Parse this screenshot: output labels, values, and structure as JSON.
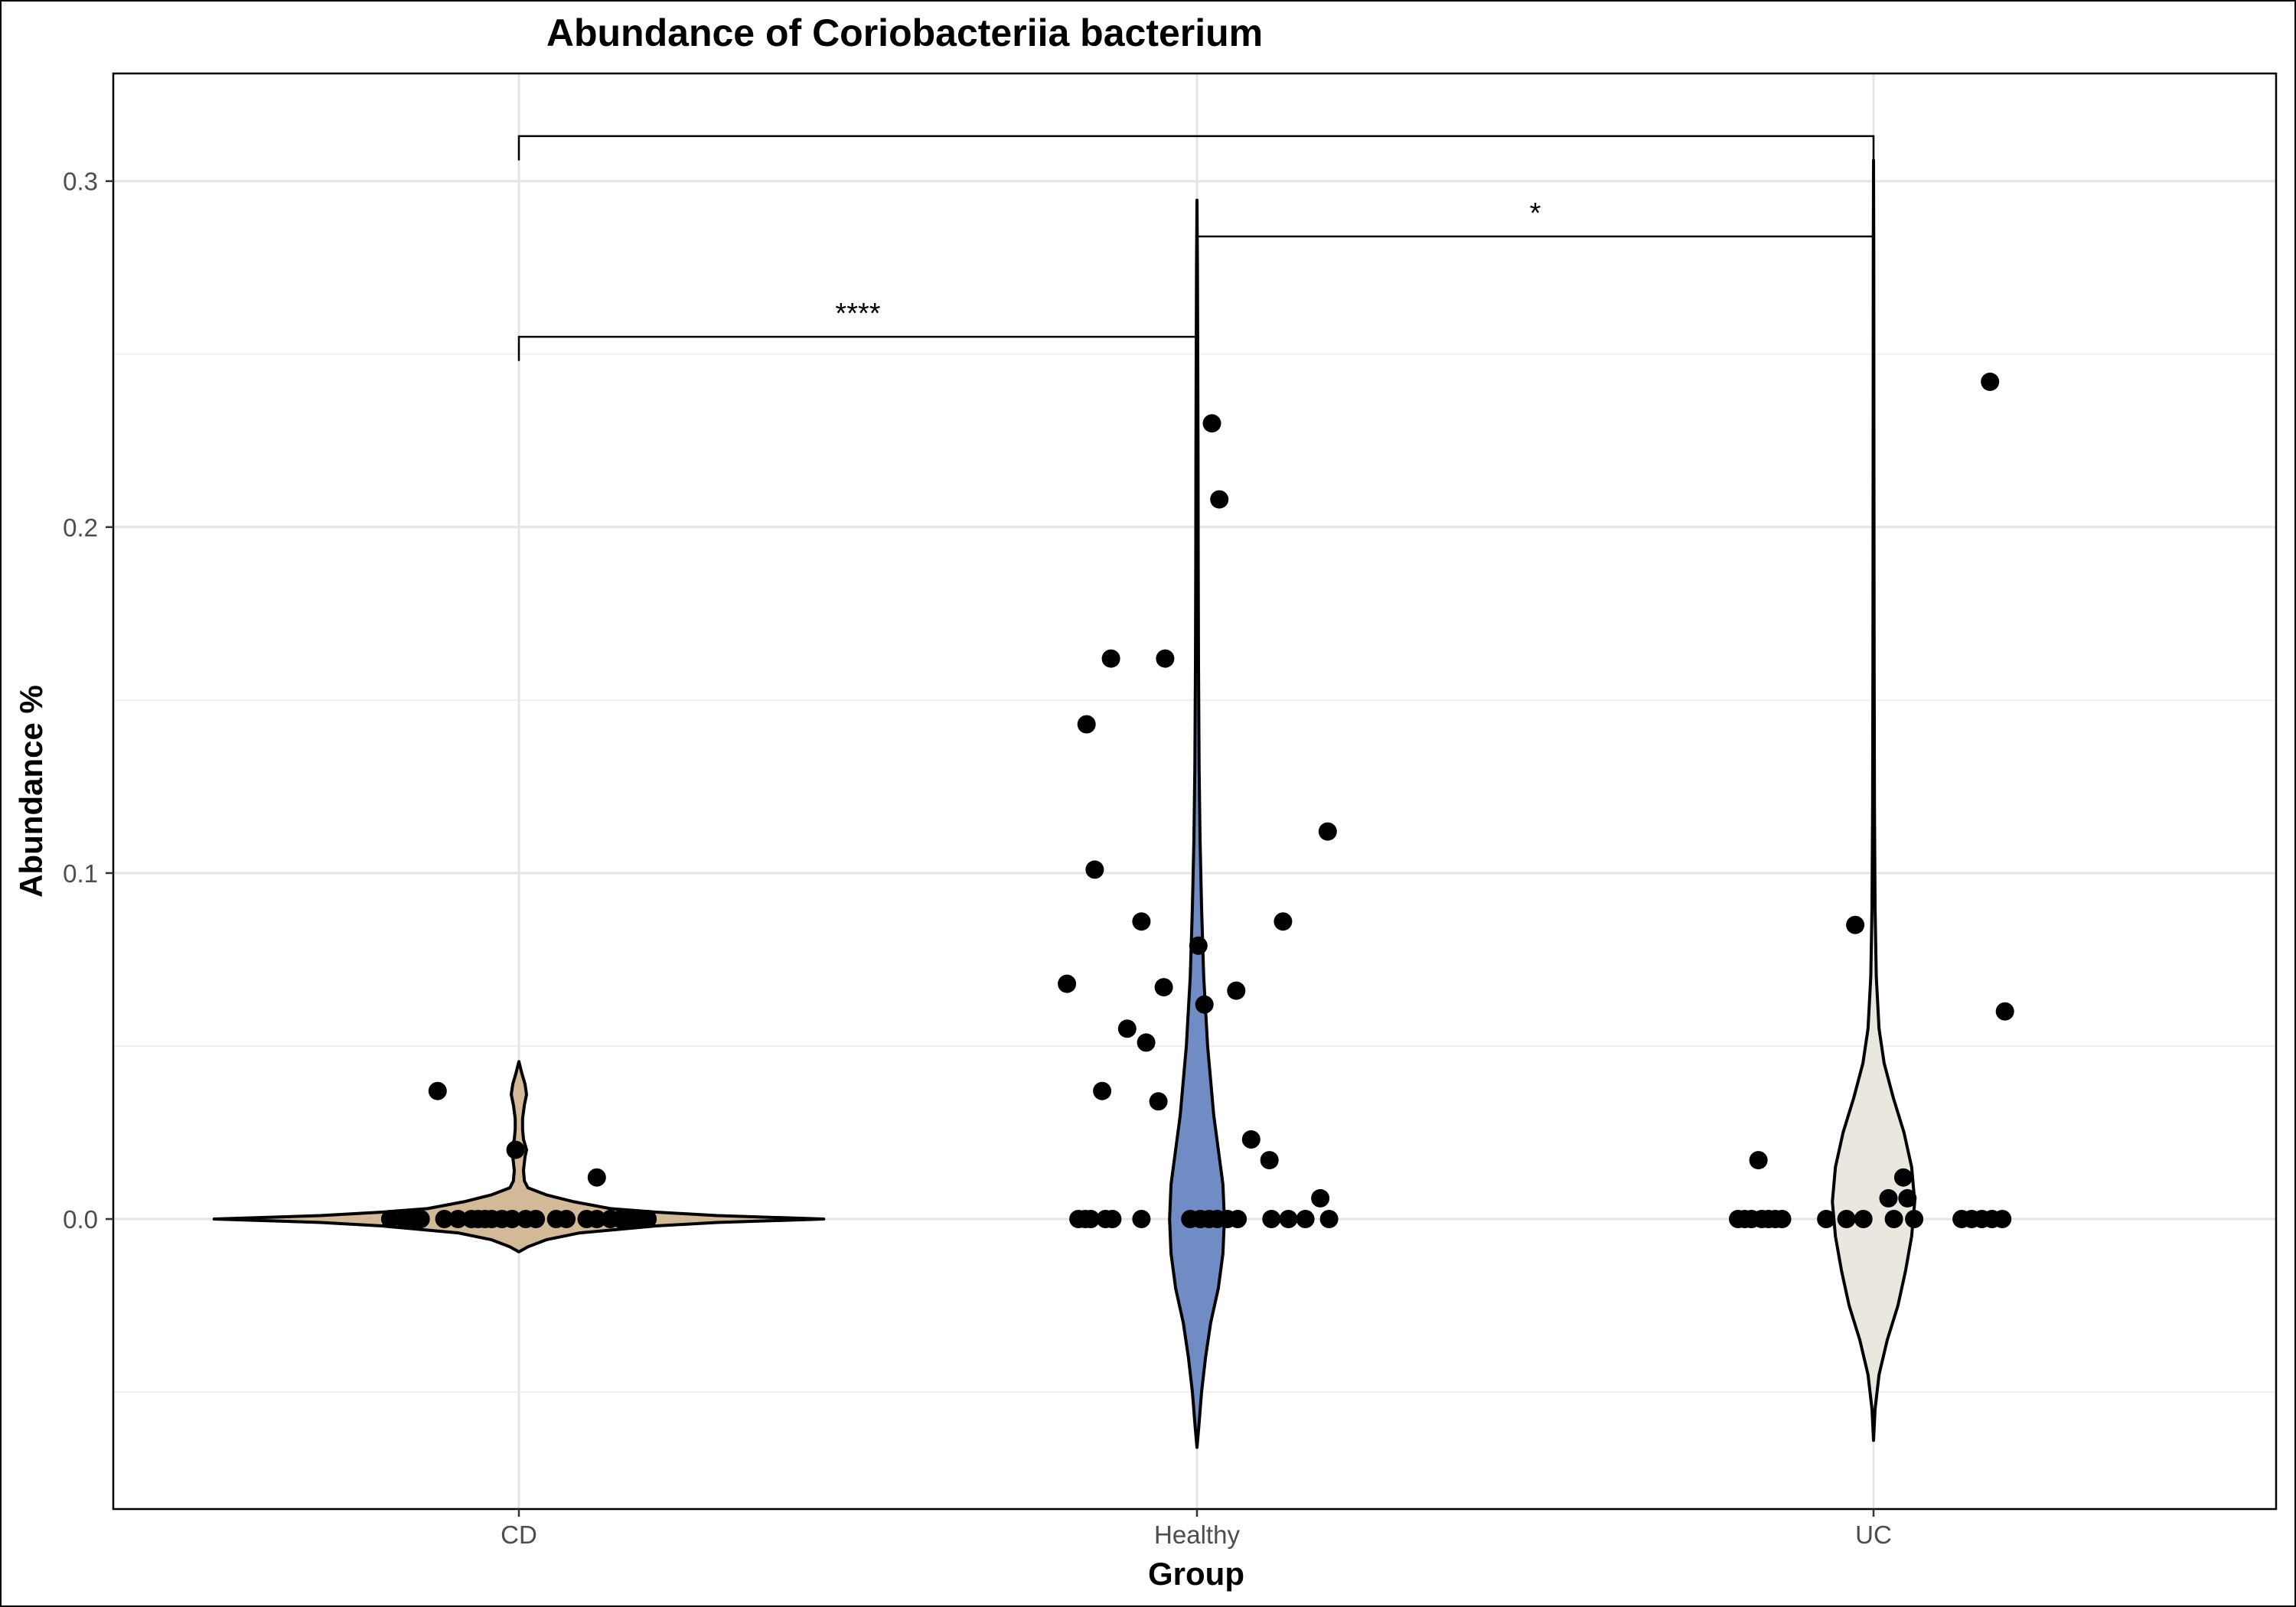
{
  "chart_data": {
    "type": "violin",
    "title": "Abundance of Coriobacteriia bacterium",
    "xlabel": "Group",
    "ylabel": "Abundance %",
    "categories": [
      "CD",
      "Healthy",
      "UC"
    ],
    "ylim": [
      -0.085,
      0.33
    ],
    "yticks": [
      0.0,
      0.1,
      0.2,
      0.3
    ],
    "yticklabels": [
      "0.0",
      "0.1",
      "0.2",
      "0.3"
    ],
    "grid": true,
    "colors": {
      "CD": "#D2B997",
      "Healthy": "#6F8DC4",
      "UC": "#EAE7DF"
    },
    "violins": [
      {
        "group": "CD",
        "profile": [
          [
            -0.0095,
            0
          ],
          [
            -0.008,
            0.03
          ],
          [
            -0.006,
            0.09
          ],
          [
            -0.004,
            0.2
          ],
          [
            -0.002,
            0.45
          ],
          [
            -0.001,
            0.65
          ],
          [
            0.0,
            1.0
          ],
          [
            0.001,
            0.65
          ],
          [
            0.002,
            0.45
          ],
          [
            0.003,
            0.3
          ],
          [
            0.005,
            0.18
          ],
          [
            0.007,
            0.09
          ],
          [
            0.009,
            0.03
          ],
          [
            0.011,
            0.018
          ],
          [
            0.014,
            0.015
          ],
          [
            0.018,
            0.02
          ],
          [
            0.02,
            0.025
          ],
          [
            0.023,
            0.015
          ],
          [
            0.026,
            0.012
          ],
          [
            0.029,
            0.012
          ],
          [
            0.033,
            0.018
          ],
          [
            0.036,
            0.025
          ],
          [
            0.039,
            0.02
          ],
          [
            0.042,
            0.01
          ],
          [
            0.0455,
            0
          ]
        ]
      },
      {
        "group": "Healthy",
        "profile": [
          [
            -0.066,
            0
          ],
          [
            -0.06,
            0.006
          ],
          [
            -0.05,
            0.015
          ],
          [
            -0.04,
            0.028
          ],
          [
            -0.03,
            0.045
          ],
          [
            -0.02,
            0.07
          ],
          [
            -0.01,
            0.085
          ],
          [
            0.0,
            0.09
          ],
          [
            0.01,
            0.085
          ],
          [
            0.02,
            0.07
          ],
          [
            0.03,
            0.055
          ],
          [
            0.05,
            0.035
          ],
          [
            0.07,
            0.022
          ],
          [
            0.09,
            0.015
          ],
          [
            0.11,
            0.01
          ],
          [
            0.13,
            0.007
          ],
          [
            0.16,
            0.005
          ],
          [
            0.19,
            0.004
          ],
          [
            0.22,
            0.0035
          ],
          [
            0.25,
            0.0025
          ],
          [
            0.275,
            0.0015
          ],
          [
            0.2945,
            0
          ]
        ]
      },
      {
        "group": "UC",
        "profile": [
          [
            -0.064,
            0
          ],
          [
            -0.055,
            0.005
          ],
          [
            -0.045,
            0.018
          ],
          [
            -0.035,
            0.045
          ],
          [
            -0.025,
            0.08
          ],
          [
            -0.015,
            0.105
          ],
          [
            -0.005,
            0.125
          ],
          [
            0.005,
            0.135
          ],
          [
            0.015,
            0.125
          ],
          [
            0.025,
            0.1
          ],
          [
            0.035,
            0.065
          ],
          [
            0.045,
            0.035
          ],
          [
            0.055,
            0.018
          ],
          [
            0.07,
            0.009
          ],
          [
            0.09,
            0.005
          ],
          [
            0.12,
            0.003
          ],
          [
            0.16,
            0.002
          ],
          [
            0.2,
            0.0015
          ],
          [
            0.25,
            0.001
          ],
          [
            0.28,
            0.0007
          ],
          [
            0.306,
            0
          ]
        ]
      }
    ],
    "points": [
      {
        "group": "CD",
        "jitter": -0.12,
        "y": 0.037
      },
      {
        "group": "CD",
        "jitter": -0.005,
        "y": 0.02
      },
      {
        "group": "CD",
        "jitter": 0.115,
        "y": 0.012
      },
      {
        "group": "CD",
        "jitter": -0.19,
        "y": 0.0
      },
      {
        "group": "CD",
        "jitter": -0.17,
        "y": 0.0
      },
      {
        "group": "CD",
        "jitter": -0.155,
        "y": 0.0
      },
      {
        "group": "CD",
        "jitter": -0.145,
        "y": 0.0
      },
      {
        "group": "CD",
        "jitter": -0.11,
        "y": 0.0
      },
      {
        "group": "CD",
        "jitter": -0.09,
        "y": 0.0
      },
      {
        "group": "CD",
        "jitter": -0.07,
        "y": 0.0
      },
      {
        "group": "CD",
        "jitter": -0.06,
        "y": 0.0
      },
      {
        "group": "CD",
        "jitter": -0.05,
        "y": 0.0
      },
      {
        "group": "CD",
        "jitter": -0.04,
        "y": 0.0
      },
      {
        "group": "CD",
        "jitter": -0.025,
        "y": 0.0
      },
      {
        "group": "CD",
        "jitter": -0.01,
        "y": 0.0
      },
      {
        "group": "CD",
        "jitter": 0.01,
        "y": 0.0
      },
      {
        "group": "CD",
        "jitter": 0.025,
        "y": 0.0
      },
      {
        "group": "CD",
        "jitter": 0.055,
        "y": 0.0
      },
      {
        "group": "CD",
        "jitter": 0.07,
        "y": 0.0
      },
      {
        "group": "CD",
        "jitter": 0.1,
        "y": 0.0
      },
      {
        "group": "CD",
        "jitter": 0.115,
        "y": 0.0
      },
      {
        "group": "CD",
        "jitter": 0.135,
        "y": 0.0
      },
      {
        "group": "CD",
        "jitter": 0.15,
        "y": 0.0
      },
      {
        "group": "CD",
        "jitter": 0.16,
        "y": 0.0
      },
      {
        "group": "CD",
        "jitter": 0.175,
        "y": 0.0
      },
      {
        "group": "CD",
        "jitter": 0.19,
        "y": 0.0
      },
      {
        "group": "Healthy",
        "jitter": 0.022,
        "y": 0.23
      },
      {
        "group": "Healthy",
        "jitter": 0.033,
        "y": 0.208
      },
      {
        "group": "Healthy",
        "jitter": -0.127,
        "y": 0.162
      },
      {
        "group": "Healthy",
        "jitter": -0.047,
        "y": 0.162
      },
      {
        "group": "Healthy",
        "jitter": -0.163,
        "y": 0.143
      },
      {
        "group": "Healthy",
        "jitter": 0.193,
        "y": 0.112
      },
      {
        "group": "Healthy",
        "jitter": -0.151,
        "y": 0.101
      },
      {
        "group": "Healthy",
        "jitter": -0.082,
        "y": 0.086
      },
      {
        "group": "Healthy",
        "jitter": 0.127,
        "y": 0.086
      },
      {
        "group": "Healthy",
        "jitter": 0.002,
        "y": 0.079
      },
      {
        "group": "Healthy",
        "jitter": -0.192,
        "y": 0.068
      },
      {
        "group": "Healthy",
        "jitter": -0.049,
        "y": 0.067
      },
      {
        "group": "Healthy",
        "jitter": 0.058,
        "y": 0.066
      },
      {
        "group": "Healthy",
        "jitter": 0.011,
        "y": 0.062
      },
      {
        "group": "Healthy",
        "jitter": -0.103,
        "y": 0.055
      },
      {
        "group": "Healthy",
        "jitter": -0.075,
        "y": 0.051
      },
      {
        "group": "Healthy",
        "jitter": -0.14,
        "y": 0.037
      },
      {
        "group": "Healthy",
        "jitter": -0.057,
        "y": 0.034
      },
      {
        "group": "Healthy",
        "jitter": 0.08,
        "y": 0.023
      },
      {
        "group": "Healthy",
        "jitter": 0.107,
        "y": 0.017
      },
      {
        "group": "Healthy",
        "jitter": 0.182,
        "y": 0.006
      },
      {
        "group": "Healthy",
        "jitter": -0.175,
        "y": 0.0
      },
      {
        "group": "Healthy",
        "jitter": -0.165,
        "y": 0.0
      },
      {
        "group": "Healthy",
        "jitter": -0.157,
        "y": 0.0
      },
      {
        "group": "Healthy",
        "jitter": -0.135,
        "y": 0.0
      },
      {
        "group": "Healthy",
        "jitter": -0.125,
        "y": 0.0
      },
      {
        "group": "Healthy",
        "jitter": -0.082,
        "y": 0.0
      },
      {
        "group": "Healthy",
        "jitter": -0.01,
        "y": 0.0
      },
      {
        "group": "Healthy",
        "jitter": 0.005,
        "y": 0.0
      },
      {
        "group": "Healthy",
        "jitter": 0.018,
        "y": 0.0
      },
      {
        "group": "Healthy",
        "jitter": 0.03,
        "y": 0.0
      },
      {
        "group": "Healthy",
        "jitter": 0.045,
        "y": 0.0
      },
      {
        "group": "Healthy",
        "jitter": 0.06,
        "y": 0.0
      },
      {
        "group": "Healthy",
        "jitter": 0.11,
        "y": 0.0
      },
      {
        "group": "Healthy",
        "jitter": 0.135,
        "y": 0.0
      },
      {
        "group": "Healthy",
        "jitter": 0.16,
        "y": 0.0
      },
      {
        "group": "Healthy",
        "jitter": 0.195,
        "y": 0.0
      },
      {
        "group": "UC",
        "jitter": 0.172,
        "y": 0.242
      },
      {
        "group": "UC",
        "jitter": -0.027,
        "y": 0.085
      },
      {
        "group": "UC",
        "jitter": 0.194,
        "y": 0.06
      },
      {
        "group": "UC",
        "jitter": -0.17,
        "y": 0.017
      },
      {
        "group": "UC",
        "jitter": 0.044,
        "y": 0.012
      },
      {
        "group": "UC",
        "jitter": 0.022,
        "y": 0.006
      },
      {
        "group": "UC",
        "jitter": 0.05,
        "y": 0.006
      },
      {
        "group": "UC",
        "jitter": -0.2,
        "y": 0.0
      },
      {
        "group": "UC",
        "jitter": -0.19,
        "y": 0.0
      },
      {
        "group": "UC",
        "jitter": -0.18,
        "y": 0.0
      },
      {
        "group": "UC",
        "jitter": -0.165,
        "y": 0.0
      },
      {
        "group": "UC",
        "jitter": -0.155,
        "y": 0.0
      },
      {
        "group": "UC",
        "jitter": -0.145,
        "y": 0.0
      },
      {
        "group": "UC",
        "jitter": -0.135,
        "y": 0.0
      },
      {
        "group": "UC",
        "jitter": -0.07,
        "y": 0.0
      },
      {
        "group": "UC",
        "jitter": -0.04,
        "y": 0.0
      },
      {
        "group": "UC",
        "jitter": -0.015,
        "y": 0.0
      },
      {
        "group": "UC",
        "jitter": 0.03,
        "y": 0.0
      },
      {
        "group": "UC",
        "jitter": 0.06,
        "y": 0.0
      },
      {
        "group": "UC",
        "jitter": 0.13,
        "y": 0.0
      },
      {
        "group": "UC",
        "jitter": 0.145,
        "y": 0.0
      },
      {
        "group": "UC",
        "jitter": 0.16,
        "y": 0.0
      },
      {
        "group": "UC",
        "jitter": 0.175,
        "y": 0.0
      },
      {
        "group": "UC",
        "jitter": 0.19,
        "y": 0.0
      }
    ],
    "comparisons": [
      {
        "from": "CD",
        "to": "Healthy",
        "label": "****",
        "y": 0.255,
        "tick_left_end": 0.248,
        "tick_right_end": 0.255
      },
      {
        "from": "Healthy",
        "to": "UC",
        "label": "*",
        "y": 0.284,
        "tick_left_end": 0.278,
        "tick_right_end": 0.278
      },
      {
        "from": "CD",
        "to": "UC",
        "label": "",
        "y": 0.313,
        "tick_left_end": 0.306,
        "tick_right_end": 0.306
      }
    ]
  }
}
